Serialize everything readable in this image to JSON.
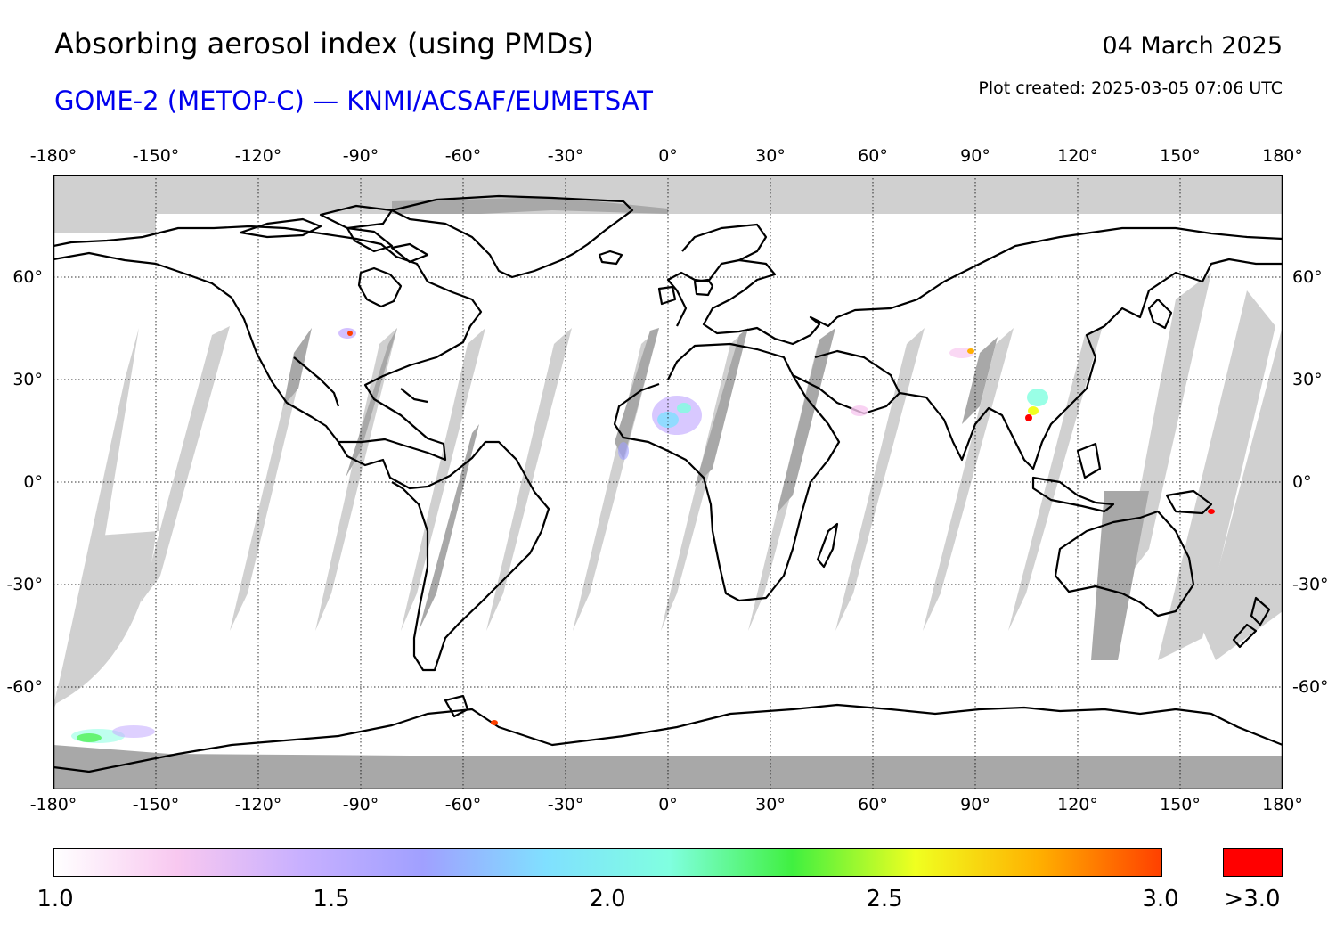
{
  "header": {
    "title": "Absorbing aerosol index (using PMDs)",
    "subtitle": "GOME-2 (METOP-C) — KNMI/ACSAF/EUMETSAT",
    "date": "04 March 2025",
    "plot_created": "Plot created: 2025-03-05 07:06 UTC"
  },
  "map": {
    "projection": "equirectangular",
    "lon_range": [
      -180,
      180
    ],
    "lat_range": [
      -90,
      90
    ],
    "lon_ticks": [
      "-180°",
      "-150°",
      "-120°",
      "-90°",
      "-60°",
      "-30°",
      "0°",
      "30°",
      "60°",
      "90°",
      "120°",
      "150°",
      "180°"
    ],
    "lat_ticks": [
      "60°",
      "30°",
      "0°",
      "-30°",
      "-60°"
    ],
    "colors": {
      "no_data": "#d0d0d0",
      "polar_no_data": "#a8a8a8",
      "coastline": "#000000",
      "gridline": "#000000"
    }
  },
  "colorbar": {
    "tick_labels": [
      "1.0",
      "1.5",
      "2.0",
      "2.5",
      "3.0"
    ],
    "over_label": ">3.0",
    "over_color": "#ff0000",
    "gradient": [
      "#ffffff",
      "#f8c8f0",
      "#c8b0ff",
      "#a0a0ff",
      "#80e0ff",
      "#80ffe0",
      "#40f040",
      "#f0ff20",
      "#ffb000",
      "#ff4000"
    ]
  }
}
